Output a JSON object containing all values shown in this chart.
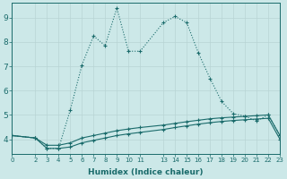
{
  "background_color": "#cce8e8",
  "grid_color": "#b8d4d4",
  "line_color": "#1a6b6b",
  "xlabel": "Humidex (Indice chaleur)",
  "xlim": [
    0,
    23
  ],
  "ylim": [
    3.4,
    9.6
  ],
  "yticks": [
    4,
    5,
    6,
    7,
    8,
    9
  ],
  "xtick_positions": [
    0,
    2,
    3,
    4,
    5,
    6,
    7,
    8,
    9,
    10,
    11,
    13,
    14,
    15,
    16,
    17,
    18,
    19,
    20,
    21,
    22,
    23
  ],
  "xtick_labels": [
    "0",
    "2",
    "3",
    "4",
    "5",
    "6",
    "7",
    "8",
    "9",
    "10",
    "11",
    "13",
    "14",
    "15",
    "16",
    "17",
    "18",
    "19",
    "20",
    "21",
    "22",
    "23"
  ],
  "line_dotted_x": [
    0,
    2,
    3,
    4,
    5,
    6,
    7,
    8,
    9,
    10,
    11,
    13,
    14,
    15,
    16,
    17,
    18,
    19,
    20,
    21,
    22,
    23
  ],
  "line_dotted_y": [
    4.15,
    4.05,
    3.62,
    3.62,
    5.2,
    7.05,
    8.25,
    7.85,
    9.4,
    7.62,
    7.62,
    8.8,
    9.05,
    8.8,
    7.55,
    6.5,
    5.55,
    5.05,
    4.95,
    4.75,
    5.0,
    4.15
  ],
  "line2_x": [
    0,
    2,
    3,
    4,
    5,
    6,
    7,
    8,
    9,
    10,
    11,
    13,
    14,
    15,
    16,
    17,
    18,
    19,
    20,
    21,
    22,
    23
  ],
  "line2_y": [
    4.15,
    4.05,
    3.75,
    3.75,
    3.85,
    4.05,
    4.15,
    4.25,
    4.35,
    4.42,
    4.48,
    4.58,
    4.65,
    4.72,
    4.78,
    4.84,
    4.88,
    4.91,
    4.94,
    4.97,
    5.0,
    4.15
  ],
  "line3_x": [
    0,
    2,
    3,
    4,
    5,
    6,
    7,
    8,
    9,
    10,
    11,
    13,
    14,
    15,
    16,
    17,
    18,
    19,
    20,
    21,
    22,
    23
  ],
  "line3_y": [
    4.15,
    4.05,
    3.62,
    3.62,
    3.68,
    3.85,
    3.95,
    4.05,
    4.15,
    4.22,
    4.28,
    4.4,
    4.48,
    4.55,
    4.62,
    4.68,
    4.73,
    4.77,
    4.8,
    4.83,
    4.86,
    4.0
  ]
}
